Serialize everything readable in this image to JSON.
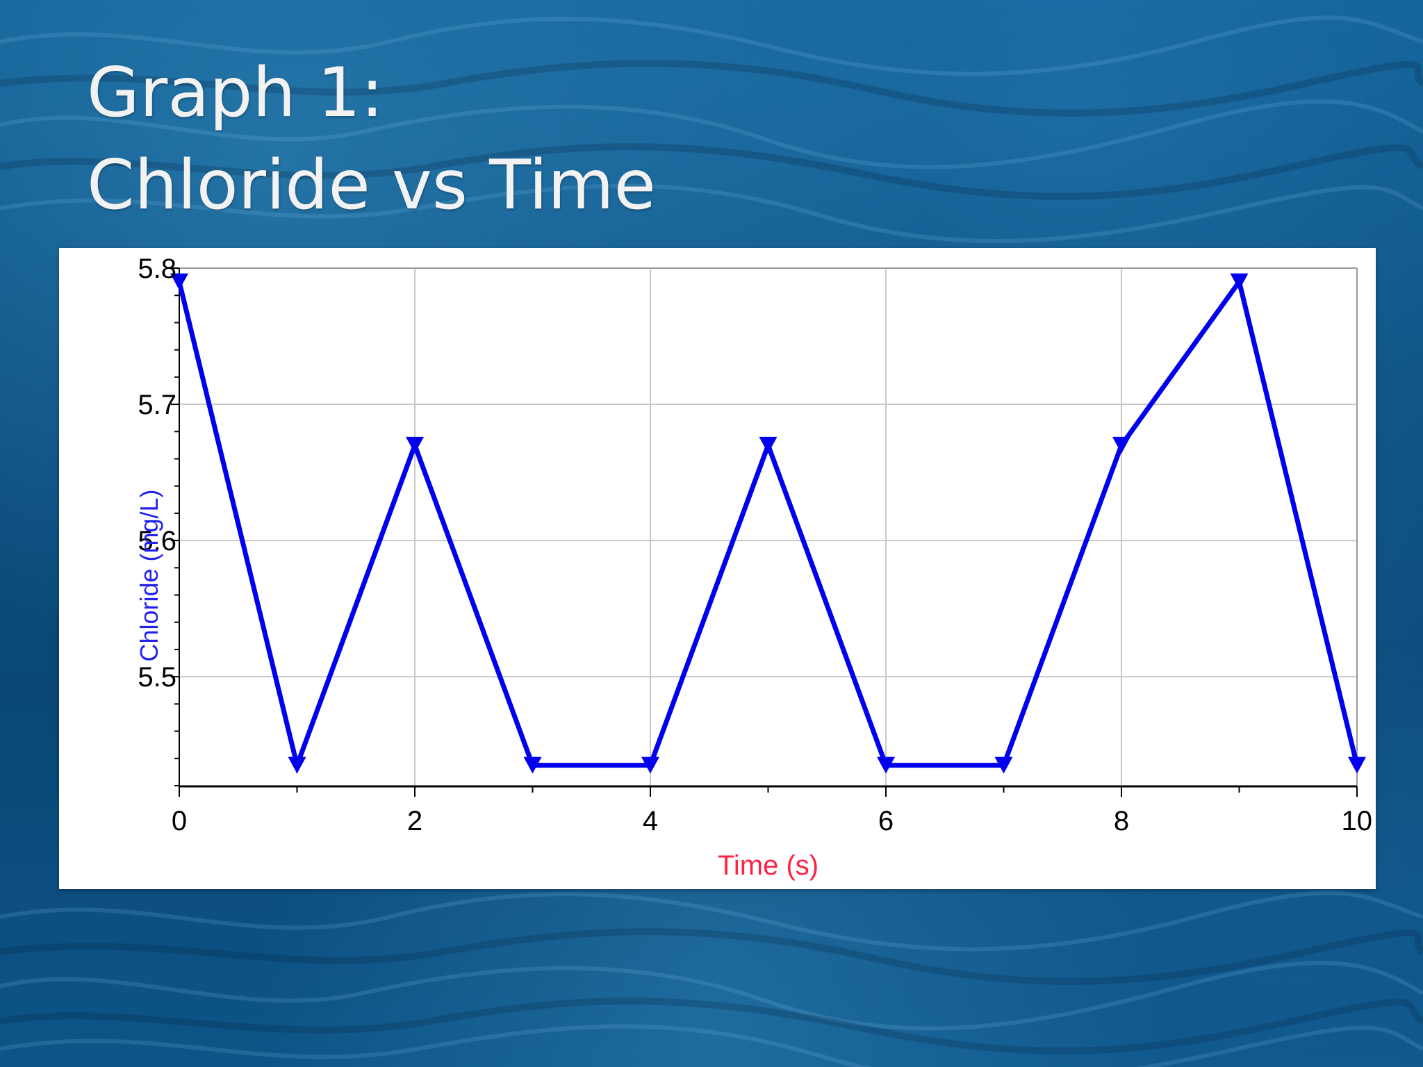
{
  "slide": {
    "title_line1": "Graph 1:",
    "title_line2": "Chloride vs Time"
  },
  "colors": {
    "series": "#0000ee",
    "xlabel": "#ff2244",
    "ylabel": "#2222ee",
    "grid": "#c8c8c8",
    "title": "#f2f2f2"
  },
  "chart_data": {
    "type": "line",
    "title": "",
    "xlabel": "Time (s)",
    "ylabel": "Chloride (mg/L)",
    "xlim": [
      0,
      10
    ],
    "ylim": [
      5.42,
      5.8
    ],
    "xticks": [
      0,
      2,
      4,
      6,
      8,
      10
    ],
    "yticks": [
      5.5,
      5.6,
      5.7,
      5.8
    ],
    "ytick_labels": [
      "5.5",
      "5.6",
      "5.7",
      "5.8"
    ],
    "grid": true,
    "marker": "down-triangle",
    "series": [
      {
        "x": [
          0,
          1,
          2,
          3,
          4,
          5,
          6,
          7,
          8,
          9,
          10
        ],
        "y": [
          5.79,
          5.435,
          5.67,
          5.435,
          5.435,
          5.67,
          5.435,
          5.435,
          5.67,
          5.79,
          5.435
        ]
      }
    ]
  }
}
